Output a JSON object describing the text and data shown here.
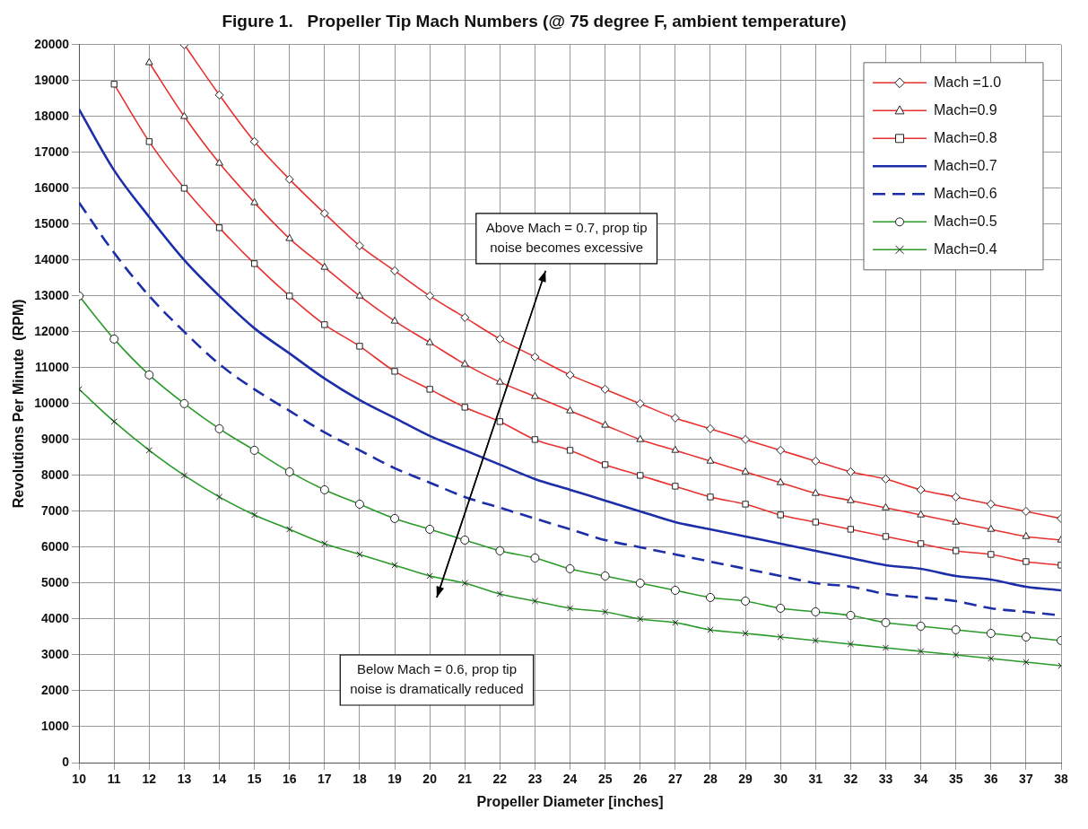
{
  "chart_data": {
    "type": "line",
    "title": "Figure 1.   Propeller Tip Mach Numbers (@ 75 degree F, ambient temperature)",
    "xlabel": "Propeller Diameter [inches]",
    "ylabel": "Revolutions Per Minute  (RPM)",
    "xlim": [
      10,
      38
    ],
    "xticks": [
      10,
      11,
      12,
      13,
      14,
      15,
      16,
      17,
      18,
      19,
      20,
      21,
      22,
      23,
      24,
      25,
      26,
      27,
      28,
      29,
      30,
      31,
      32,
      33,
      34,
      35,
      36,
      37,
      38
    ],
    "ylim": [
      0,
      20000
    ],
    "yticks": [
      0,
      1000,
      2000,
      3000,
      4000,
      5000,
      6000,
      7000,
      8000,
      9000,
      10000,
      11000,
      12000,
      13000,
      14000,
      15000,
      16000,
      17000,
      18000,
      19000,
      20000
    ],
    "grid": true,
    "legend": "top right",
    "annotations": [
      "Above Mach = 0.7, prop tip noise becomes excessive",
      "Below Mach = 0.6, prop tip noise is dramatically reduced"
    ],
    "series": [
      {
        "name": "Mach =1.0",
        "color": "#e8312f",
        "marker": "diamond",
        "x": [
          13,
          14,
          15,
          16,
          17,
          18,
          19,
          20,
          21,
          22,
          23,
          24,
          25,
          26,
          27,
          28,
          29,
          30,
          31,
          32,
          33,
          34,
          35,
          36,
          37,
          38
        ],
        "values": [
          20000,
          18600,
          17300,
          16250,
          15300,
          14400,
          13700,
          13000,
          12400,
          11800,
          11300,
          10800,
          10400,
          10000,
          9600,
          9300,
          9000,
          8700,
          8400,
          8100,
          7900,
          7600,
          7400,
          7200,
          7000,
          6800
        ]
      },
      {
        "name": "Mach=0.9",
        "color": "#e8312f",
        "marker": "triangle",
        "x": [
          12,
          13,
          14,
          15,
          16,
          17,
          18,
          19,
          20,
          21,
          22,
          23,
          24,
          25,
          26,
          27,
          28,
          29,
          30,
          31,
          32,
          33,
          34,
          35,
          36,
          37,
          38
        ],
        "values": [
          19500,
          18000,
          16700,
          15600,
          14600,
          13800,
          13000,
          12300,
          11700,
          11100,
          10600,
          10200,
          9800,
          9400,
          9000,
          8700,
          8400,
          8100,
          7800,
          7500,
          7300,
          7100,
          6900,
          6700,
          6500,
          6300,
          6200
        ]
      },
      {
        "name": "Mach=0.8",
        "color": "#e8312f",
        "marker": "square",
        "x": [
          11,
          12,
          13,
          14,
          15,
          16,
          17,
          18,
          19,
          20,
          21,
          22,
          23,
          24,
          25,
          26,
          27,
          28,
          29,
          30,
          31,
          32,
          33,
          34,
          35,
          36,
          37,
          38
        ],
        "values": [
          18900,
          17300,
          16000,
          14900,
          13900,
          13000,
          12200,
          11600,
          10900,
          10400,
          9900,
          9500,
          9000,
          8700,
          8300,
          8000,
          7700,
          7400,
          7200,
          6900,
          6700,
          6500,
          6300,
          6100,
          5900,
          5800,
          5600,
          5500
        ]
      },
      {
        "name": "Mach=0.7",
        "color": "#1c2fa8",
        "marker": "none",
        "x": [
          10,
          11,
          12,
          13,
          14,
          15,
          16,
          17,
          18,
          19,
          20,
          21,
          22,
          23,
          24,
          25,
          26,
          27,
          28,
          29,
          30,
          31,
          32,
          33,
          34,
          35,
          36,
          37,
          38
        ],
        "values": [
          18200,
          16500,
          15200,
          14000,
          13000,
          12100,
          11400,
          10700,
          10100,
          9600,
          9100,
          8700,
          8300,
          7900,
          7600,
          7300,
          7000,
          6700,
          6500,
          6300,
          6100,
          5900,
          5700,
          5500,
          5400,
          5200,
          5100,
          4900,
          4800
        ]
      },
      {
        "name": "Mach=0.6",
        "color": "#1c2fa8",
        "marker": "none",
        "line_style": "dashed",
        "x": [
          10,
          11,
          12,
          13,
          14,
          15,
          16,
          17,
          18,
          19,
          20,
          21,
          22,
          23,
          24,
          25,
          26,
          27,
          28,
          29,
          30,
          31,
          32,
          33,
          34,
          35,
          36,
          37,
          38
        ],
        "values": [
          15600,
          14200,
          13000,
          12000,
          11100,
          10400,
          9800,
          9200,
          8700,
          8200,
          7800,
          7400,
          7100,
          6800,
          6500,
          6200,
          6000,
          5800,
          5600,
          5400,
          5200,
          5000,
          4900,
          4700,
          4600,
          4500,
          4300,
          4200,
          4100
        ]
      },
      {
        "name": "Mach=0.5",
        "color": "#2a9a2a",
        "marker": "circle",
        "x": [
          10,
          11,
          12,
          13,
          14,
          15,
          16,
          17,
          18,
          19,
          20,
          21,
          22,
          23,
          24,
          25,
          26,
          27,
          28,
          29,
          30,
          31,
          32,
          33,
          34,
          35,
          36,
          37,
          38
        ],
        "values": [
          13000,
          11800,
          10800,
          10000,
          9300,
          8700,
          8100,
          7600,
          7200,
          6800,
          6500,
          6200,
          5900,
          5700,
          5400,
          5200,
          5000,
          4800,
          4600,
          4500,
          4300,
          4200,
          4100,
          3900,
          3800,
          3700,
          3600,
          3500,
          3400
        ]
      },
      {
        "name": "Mach=0.4",
        "color": "#2a9a2a",
        "marker": "cross",
        "x": [
          10,
          11,
          12,
          13,
          14,
          15,
          16,
          17,
          18,
          19,
          20,
          21,
          22,
          23,
          24,
          25,
          26,
          27,
          28,
          29,
          30,
          31,
          32,
          33,
          34,
          35,
          36,
          37,
          38
        ],
        "values": [
          10400,
          9500,
          8700,
          8000,
          7400,
          6900,
          6500,
          6100,
          5800,
          5500,
          5200,
          5000,
          4700,
          4500,
          4300,
          4200,
          4000,
          3900,
          3700,
          3600,
          3500,
          3400,
          3300,
          3200,
          3100,
          3000,
          2900,
          2800,
          2700
        ]
      }
    ]
  }
}
